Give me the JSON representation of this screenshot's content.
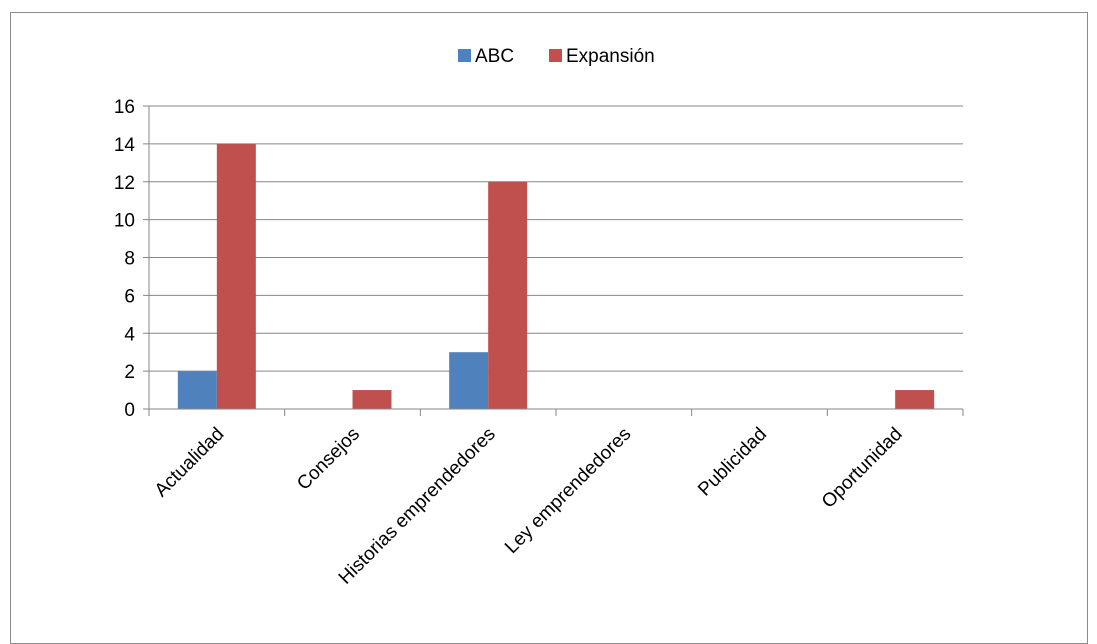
{
  "chart_data": {
    "type": "bar",
    "categories": [
      "Actualidad",
      "Consejos",
      "Historias emprendedores",
      "Ley emprendedores",
      "Publicidad",
      "Oportunidad"
    ],
    "series": [
      {
        "name": "ABC",
        "values": [
          2,
          0,
          3,
          0,
          0,
          0
        ]
      },
      {
        "name": "Expansión",
        "values": [
          14,
          1,
          12,
          0,
          0,
          1
        ]
      }
    ],
    "ylim": [
      0,
      16
    ],
    "yticks": [
      "0",
      "2",
      "4",
      "6",
      "8",
      "10",
      "12",
      "14",
      "16"
    ],
    "grid": true,
    "legend_position": "top-center",
    "colors": {
      "ABC": "#4f81bd",
      "Expansión": "#c0504d",
      "grid": "#868686",
      "axis": "#868686"
    }
  }
}
